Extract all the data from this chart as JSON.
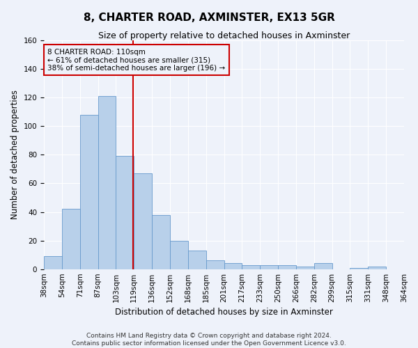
{
  "title": "8, CHARTER ROAD, AXMINSTER, EX13 5GR",
  "subtitle": "Size of property relative to detached houses in Axminster",
  "xlabel": "Distribution of detached houses by size in Axminster",
  "ylabel": "Number of detached properties",
  "bar_labels": [
    "38sqm",
    "54sqm",
    "71sqm",
    "87sqm",
    "103sqm",
    "119sqm",
    "136sqm",
    "152sqm",
    "168sqm",
    "185sqm",
    "201sqm",
    "217sqm",
    "233sqm",
    "250sqm",
    "266sqm",
    "282sqm",
    "299sqm",
    "315sqm",
    "331sqm",
    "348sqm",
    "364sqm"
  ],
  "bar_values": [
    9,
    42,
    108,
    121,
    79,
    67,
    38,
    20,
    13,
    6,
    4,
    3,
    3,
    3,
    2,
    4,
    0,
    1,
    2,
    0
  ],
  "bar_color": "#b8d0ea",
  "bar_edge_color": "#6699cc",
  "ylim": [
    0,
    160
  ],
  "yticks": [
    0,
    20,
    40,
    60,
    80,
    100,
    120,
    140,
    160
  ],
  "property_line_x": 4.45,
  "annotation_title": "8 CHARTER ROAD: 110sqm",
  "annotation_line1": "← 61% of detached houses are smaller (315)",
  "annotation_line2": "38% of semi-detached houses are larger (196) →",
  "red_line_color": "#cc0000",
  "footer_line1": "Contains HM Land Registry data © Crown copyright and database right 2024.",
  "footer_line2": "Contains public sector information licensed under the Open Government Licence v3.0.",
  "background_color": "#eef2fa",
  "grid_color": "#ffffff",
  "title_fontsize": 11,
  "subtitle_fontsize": 9,
  "xlabel_fontsize": 8.5,
  "ylabel_fontsize": 8.5,
  "tick_fontsize": 7.5,
  "annotation_fontsize": 7.5,
  "footer_fontsize": 6.5
}
